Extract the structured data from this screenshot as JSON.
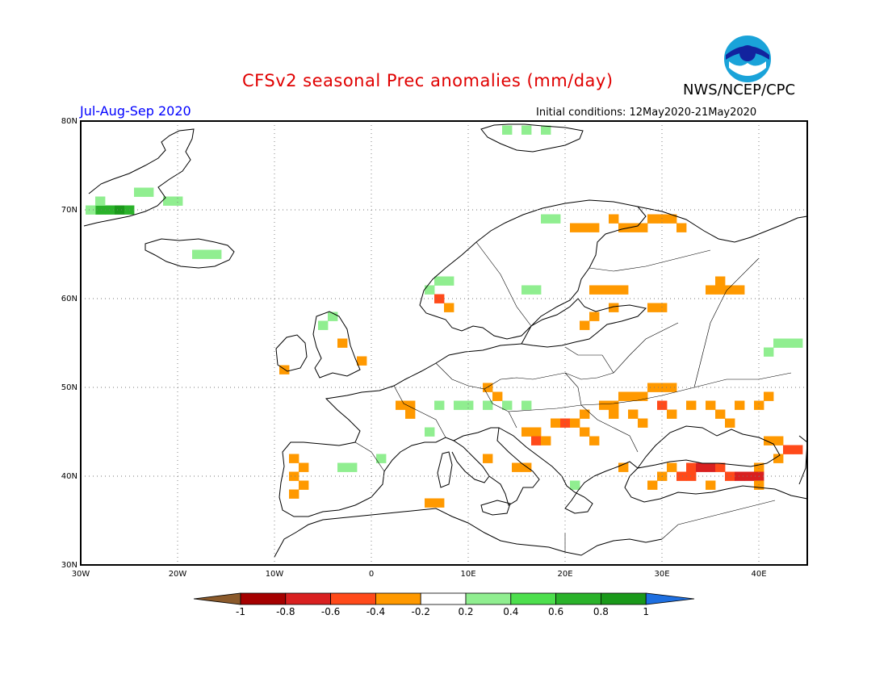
{
  "title": "CFSv2 seasonal Prec anomalies (mm/day)",
  "agency": "NWS/NCEP/CPC",
  "logo_text": "NOAA",
  "season": "Jul-Aug-Sep 2020",
  "initial_conditions": "Initial conditions: 12May2020-21May2020",
  "lat_labels": [
    "80N",
    "70N",
    "60N",
    "50N",
    "40N",
    "30N"
  ],
  "lon_labels": [
    "30W",
    "20W",
    "10W",
    "0",
    "10E",
    "20E",
    "30E",
    "40E"
  ],
  "colorbar": {
    "labels": [
      "-1",
      "-0.8",
      "-0.6",
      "-0.4",
      "-0.2",
      "0.2",
      "0.4",
      "0.6",
      "0.8",
      "1"
    ],
    "colors": [
      "#8b5a2b",
      "#a50000",
      "#d92020",
      "#ff4a1a",
      "#ff9900",
      "#ffffff",
      "#90ee90",
      "#4ddf4d",
      "#2ab22a",
      "#1a991a",
      "#1e6fe0"
    ]
  },
  "chart_data": {
    "type": "map",
    "projection": "lat-lon",
    "lon_range": [
      -30,
      45
    ],
    "lat_range": [
      30,
      80
    ],
    "legend_placement": "bottom",
    "cells": [
      {
        "lon": -20,
        "lat": 71,
        "value": 0.3
      },
      {
        "lon": -21,
        "lat": 71,
        "value": 0.3
      },
      {
        "lon": -23,
        "lat": 72,
        "value": 0.3
      },
      {
        "lon": -24,
        "lat": 72,
        "value": 0.3
      },
      {
        "lon": -28,
        "lat": 70,
        "value": 0.7
      },
      {
        "lon": -27,
        "lat": 70,
        "value": 0.7
      },
      {
        "lon": -26,
        "lat": 70,
        "value": 0.9
      },
      {
        "lon": -25,
        "lat": 70,
        "value": 0.7
      },
      {
        "lon": -29,
        "lat": 70,
        "value": 0.3
      },
      {
        "lon": -28,
        "lat": 71,
        "value": 0.3
      },
      {
        "lon": -17,
        "lat": 65,
        "value": 0.3
      },
      {
        "lon": -18,
        "lat": 65,
        "value": 0.3
      },
      {
        "lon": -16,
        "lat": 65,
        "value": 0.3
      },
      {
        "lon": 14,
        "lat": 79,
        "value": 0.3
      },
      {
        "lon": 16,
        "lat": 79,
        "value": 0.3
      },
      {
        "lon": 18,
        "lat": 79,
        "value": 0.3
      },
      {
        "lon": 7,
        "lat": 62,
        "value": 0.3
      },
      {
        "lon": 8,
        "lat": 62,
        "value": 0.3
      },
      {
        "lon": 6,
        "lat": 61,
        "value": 0.3
      },
      {
        "lon": 16,
        "lat": 61,
        "value": 0.3
      },
      {
        "lon": 17,
        "lat": 61,
        "value": 0.3
      },
      {
        "lon": 18,
        "lat": 69,
        "value": 0.3
      },
      {
        "lon": 19,
        "lat": 69,
        "value": 0.3
      },
      {
        "lon": 21,
        "lat": 68,
        "value": -0.3
      },
      {
        "lon": 22,
        "lat": 68,
        "value": -0.3
      },
      {
        "lon": 23,
        "lat": 68,
        "value": -0.3
      },
      {
        "lon": 25,
        "lat": 69,
        "value": -0.3
      },
      {
        "lon": 26,
        "lat": 68,
        "value": -0.3
      },
      {
        "lon": 27,
        "lat": 68,
        "value": -0.3
      },
      {
        "lon": 28,
        "lat": 68,
        "value": -0.3
      },
      {
        "lon": 29,
        "lat": 69,
        "value": -0.3
      },
      {
        "lon": 30,
        "lat": 69,
        "value": -0.3
      },
      {
        "lon": 31,
        "lat": 69,
        "value": -0.3
      },
      {
        "lon": 32,
        "lat": 68,
        "value": -0.3
      },
      {
        "lon": 23,
        "lat": 61,
        "value": -0.3
      },
      {
        "lon": 24,
        "lat": 61,
        "value": -0.3
      },
      {
        "lon": 25,
        "lat": 61,
        "value": -0.3
      },
      {
        "lon": 26,
        "lat": 61,
        "value": -0.3
      },
      {
        "lon": 35,
        "lat": 61,
        "value": -0.3
      },
      {
        "lon": 36,
        "lat": 61,
        "value": -0.3
      },
      {
        "lon": 37,
        "lat": 61,
        "value": -0.3
      },
      {
        "lon": 38,
        "lat": 61,
        "value": -0.3
      },
      {
        "lon": 36,
        "lat": 62,
        "value": -0.3
      },
      {
        "lon": 42,
        "lat": 55,
        "value": 0.3
      },
      {
        "lon": 43,
        "lat": 55,
        "value": 0.3
      },
      {
        "lon": 44,
        "lat": 55,
        "value": 0.3
      },
      {
        "lon": 41,
        "lat": 54,
        "value": 0.3
      },
      {
        "lon": -4,
        "lat": 58,
        "value": 0.3
      },
      {
        "lon": -5,
        "lat": 57,
        "value": 0.3
      },
      {
        "lon": 7,
        "lat": 48,
        "value": 0.3
      },
      {
        "lon": 9,
        "lat": 48,
        "value": 0.3
      },
      {
        "lon": 10,
        "lat": 48,
        "value": 0.3
      },
      {
        "lon": 12,
        "lat": 48,
        "value": 0.3
      },
      {
        "lon": 14,
        "lat": 48,
        "value": 0.3
      },
      {
        "lon": 16,
        "lat": 48,
        "value": 0.3
      },
      {
        "lon": 6,
        "lat": 45,
        "value": 0.3
      },
      {
        "lon": 1,
        "lat": 42,
        "value": 0.3
      },
      {
        "lon": -3,
        "lat": 41,
        "value": 0.3
      },
      {
        "lon": -2,
        "lat": 41,
        "value": 0.3
      },
      {
        "lon": 21,
        "lat": 39,
        "value": 0.3
      },
      {
        "lon": 4,
        "lat": 48,
        "value": -0.3
      },
      {
        "lon": 4,
        "lat": 47,
        "value": -0.3
      },
      {
        "lon": 3,
        "lat": 48,
        "value": -0.3
      },
      {
        "lon": 12,
        "lat": 50,
        "value": -0.3
      },
      {
        "lon": 13,
        "lat": 49,
        "value": -0.3
      },
      {
        "lon": 16,
        "lat": 45,
        "value": -0.3
      },
      {
        "lon": 17,
        "lat": 45,
        "value": -0.3
      },
      {
        "lon": 17,
        "lat": 44,
        "value": -0.5
      },
      {
        "lon": 18,
        "lat": 44,
        "value": -0.3
      },
      {
        "lon": 19,
        "lat": 46,
        "value": -0.3
      },
      {
        "lon": 20,
        "lat": 46,
        "value": -0.5
      },
      {
        "lon": 21,
        "lat": 46,
        "value": -0.3
      },
      {
        "lon": 22,
        "lat": 47,
        "value": -0.3
      },
      {
        "lon": 22,
        "lat": 45,
        "value": -0.3
      },
      {
        "lon": 23,
        "lat": 44,
        "value": -0.3
      },
      {
        "lon": 24,
        "lat": 48,
        "value": -0.3
      },
      {
        "lon": 25,
        "lat": 48,
        "value": -0.3
      },
      {
        "lon": 26,
        "lat": 49,
        "value": -0.3
      },
      {
        "lon": 27,
        "lat": 49,
        "value": -0.3
      },
      {
        "lon": 28,
        "lat": 49,
        "value": -0.3
      },
      {
        "lon": 29,
        "lat": 50,
        "value": -0.3
      },
      {
        "lon": 30,
        "lat": 50,
        "value": -0.3
      },
      {
        "lon": 31,
        "lat": 50,
        "value": -0.3
      },
      {
        "lon": 30,
        "lat": 48,
        "value": -0.5
      },
      {
        "lon": 31,
        "lat": 47,
        "value": -0.3
      },
      {
        "lon": 33,
        "lat": 48,
        "value": -0.3
      },
      {
        "lon": 35,
        "lat": 48,
        "value": -0.3
      },
      {
        "lon": 36,
        "lat": 47,
        "value": -0.3
      },
      {
        "lon": 38,
        "lat": 48,
        "value": -0.3
      },
      {
        "lon": 40,
        "lat": 48,
        "value": -0.3
      },
      {
        "lon": 41,
        "lat": 49,
        "value": -0.3
      },
      {
        "lon": 27,
        "lat": 47,
        "value": -0.3
      },
      {
        "lon": 28,
        "lat": 46,
        "value": -0.3
      },
      {
        "lon": 25,
        "lat": 47,
        "value": -0.3
      },
      {
        "lon": 37,
        "lat": 46,
        "value": -0.3
      },
      {
        "lon": 41,
        "lat": 44,
        "value": -0.3
      },
      {
        "lon": 42,
        "lat": 44,
        "value": -0.3
      },
      {
        "lon": 43,
        "lat": 43,
        "value": -0.5
      },
      {
        "lon": 44,
        "lat": 43,
        "value": -0.5
      },
      {
        "lon": 42,
        "lat": 42,
        "value": -0.3
      },
      {
        "lon": 40,
        "lat": 41,
        "value": -0.3
      },
      {
        "lon": 33,
        "lat": 41,
        "value": -0.5
      },
      {
        "lon": 34,
        "lat": 41,
        "value": -0.7
      },
      {
        "lon": 35,
        "lat": 41,
        "value": -0.7
      },
      {
        "lon": 36,
        "lat": 41,
        "value": -0.5
      },
      {
        "lon": 32,
        "lat": 40,
        "value": -0.5
      },
      {
        "lon": 33,
        "lat": 40,
        "value": -0.5
      },
      {
        "lon": 37,
        "lat": 40,
        "value": -0.5
      },
      {
        "lon": 38,
        "lat": 40,
        "value": -0.7
      },
      {
        "lon": 39,
        "lat": 40,
        "value": -0.7
      },
      {
        "lon": 40,
        "lat": 40,
        "value": -0.7
      },
      {
        "lon": 31,
        "lat": 41,
        "value": -0.3
      },
      {
        "lon": 30,
        "lat": 40,
        "value": -0.3
      },
      {
        "lon": 29,
        "lat": 39,
        "value": -0.3
      },
      {
        "lon": 35,
        "lat": 39,
        "value": -0.3
      },
      {
        "lon": 40,
        "lat": 39,
        "value": -0.3
      },
      {
        "lon": -8,
        "lat": 42,
        "value": -0.3
      },
      {
        "lon": -7,
        "lat": 41,
        "value": -0.3
      },
      {
        "lon": -8,
        "lat": 40,
        "value": -0.3
      },
      {
        "lon": -7,
        "lat": 39,
        "value": -0.3
      },
      {
        "lon": -8,
        "lat": 38,
        "value": -0.3
      },
      {
        "lon": 12,
        "lat": 42,
        "value": -0.3
      },
      {
        "lon": 15,
        "lat": 41,
        "value": -0.3
      },
      {
        "lon": 16,
        "lat": 41,
        "value": -0.3
      },
      {
        "lon": 26,
        "lat": 41,
        "value": -0.3
      },
      {
        "lon": 6,
        "lat": 37,
        "value": -0.3
      },
      {
        "lon": 7,
        "lat": 37,
        "value": -0.3
      },
      {
        "lon": -9,
        "lat": 52,
        "value": -0.3
      },
      {
        "lon": -3,
        "lat": 55,
        "value": -0.3
      },
      {
        "lon": -1,
        "lat": 53,
        "value": -0.3
      },
      {
        "lon": 7,
        "lat": 60,
        "value": -0.5
      },
      {
        "lon": 8,
        "lat": 59,
        "value": -0.3
      },
      {
        "lon": 22,
        "lat": 57,
        "value": -0.3
      },
      {
        "lon": 23,
        "lat": 58,
        "value": -0.3
      },
      {
        "lon": 25,
        "lat": 59,
        "value": -0.3
      },
      {
        "lon": 30,
        "lat": 59,
        "value": -0.3
      },
      {
        "lon": 29,
        "lat": 59,
        "value": -0.3
      }
    ]
  }
}
